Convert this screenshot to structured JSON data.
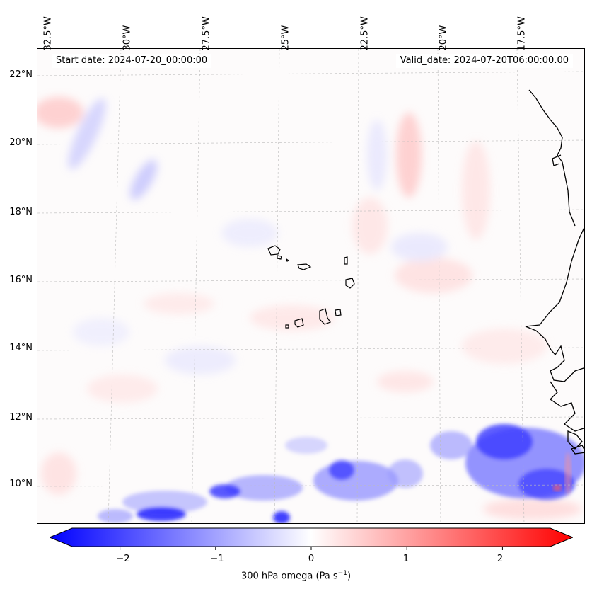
{
  "header": {
    "start_date": "Start date: 2024-07-20_00:00:00",
    "valid_date": "Valid_date: 2024-07-20T06:00:00.00"
  },
  "axes": {
    "lon_labels": [
      "32.5°W",
      "30°W",
      "27.5°W",
      "25°W",
      "22.5°W",
      "20°W",
      "17.5°W"
    ],
    "lat_labels": [
      "22°N",
      "20°N",
      "18°N",
      "16°N",
      "14°N",
      "12°N",
      "10°N"
    ],
    "gridlines": "dashed"
  },
  "colorbar": {
    "label_main": "300 hPa omega (Pa s",
    "label_sup": "−1",
    "label_end": ")",
    "ticks": [
      "−2",
      "−1",
      "0",
      "1",
      "2"
    ],
    "tick_values": [
      -2,
      -1,
      0,
      1,
      2
    ],
    "range": [
      -2.5,
      2.5
    ],
    "extend": "both",
    "colors": {
      "low": "#0000ff",
      "mid": "#ffffff",
      "high": "#ff0000"
    }
  },
  "map": {
    "features": [
      "Cape Verde islands",
      "West African coastline"
    ],
    "strong_negative_region": "south and south-east (around 9-12°N)"
  }
}
